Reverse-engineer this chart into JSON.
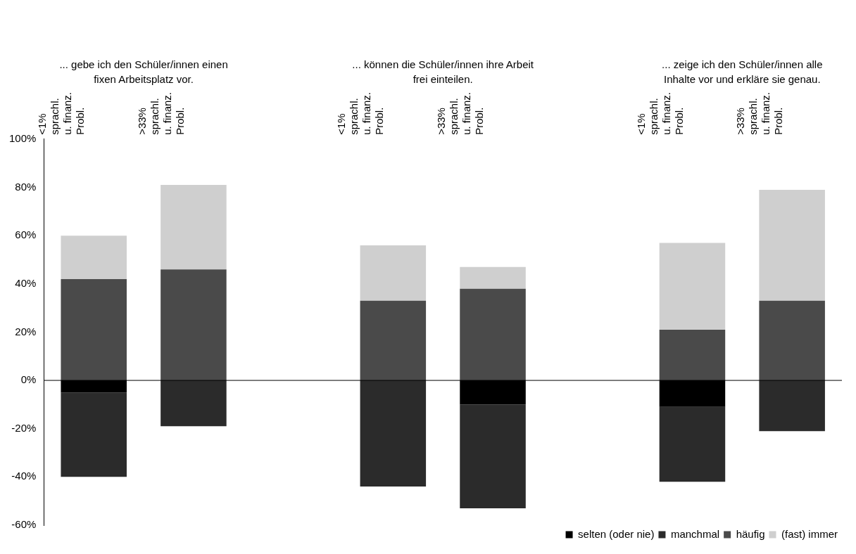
{
  "chart_data": {
    "type": "bar",
    "stacked": true,
    "categories": [
      "<1% sprachl. u. finanz. Probl.",
      ">33% sprachl. u. finanz. Probl.",
      null,
      "<1% sprachl. u. finanz. Probl.",
      ">33% sprachl. u. finanz. Probl.",
      null,
      "<1% sprachl. u. finanz. Probl.",
      ">33% sprachl. u. finanz. Probl."
    ],
    "series": [
      {
        "name": "selten (oder nie)",
        "color": "#000000",
        "values": [
          -5,
          0,
          null,
          0,
          -10,
          null,
          -11,
          0
        ]
      },
      {
        "name": "manchmal",
        "color": "#2b2b2b",
        "values": [
          -35,
          -19,
          null,
          -44,
          -43,
          null,
          -31,
          -21
        ]
      },
      {
        "name": "häufig",
        "color": "#4a4a4a",
        "values": [
          42,
          46,
          null,
          33,
          38,
          null,
          21,
          33
        ]
      },
      {
        "name": "(fast) immer",
        "color": "#cfcfcf",
        "values": [
          18,
          35,
          null,
          23,
          9,
          null,
          36,
          46
        ]
      }
    ],
    "ylim": [
      -60,
      100
    ],
    "yticks": [
      {
        "value": -60,
        "label": "-60%"
      },
      {
        "value": -40,
        "label": "-40%"
      },
      {
        "value": -20,
        "label": "-20%"
      },
      {
        "value": 0,
        "label": "0%"
      },
      {
        "value": 20,
        "label": "20%"
      },
      {
        "value": 40,
        "label": "40%"
      },
      {
        "value": 60,
        "label": "60%"
      },
      {
        "value": 80,
        "label": "80%"
      },
      {
        "value": 100,
        "label": "100%"
      }
    ],
    "annotations": [
      "... gebe ich den Schüler/innen einen fixen Arbeitsplatz vor.",
      "... können die Schüler/innen ihre Arbeit frei einteilen.",
      "... zeige ich den Schüler/innen alle Inhalte vor und erkläre sie genau."
    ],
    "legend": "bottom right"
  }
}
